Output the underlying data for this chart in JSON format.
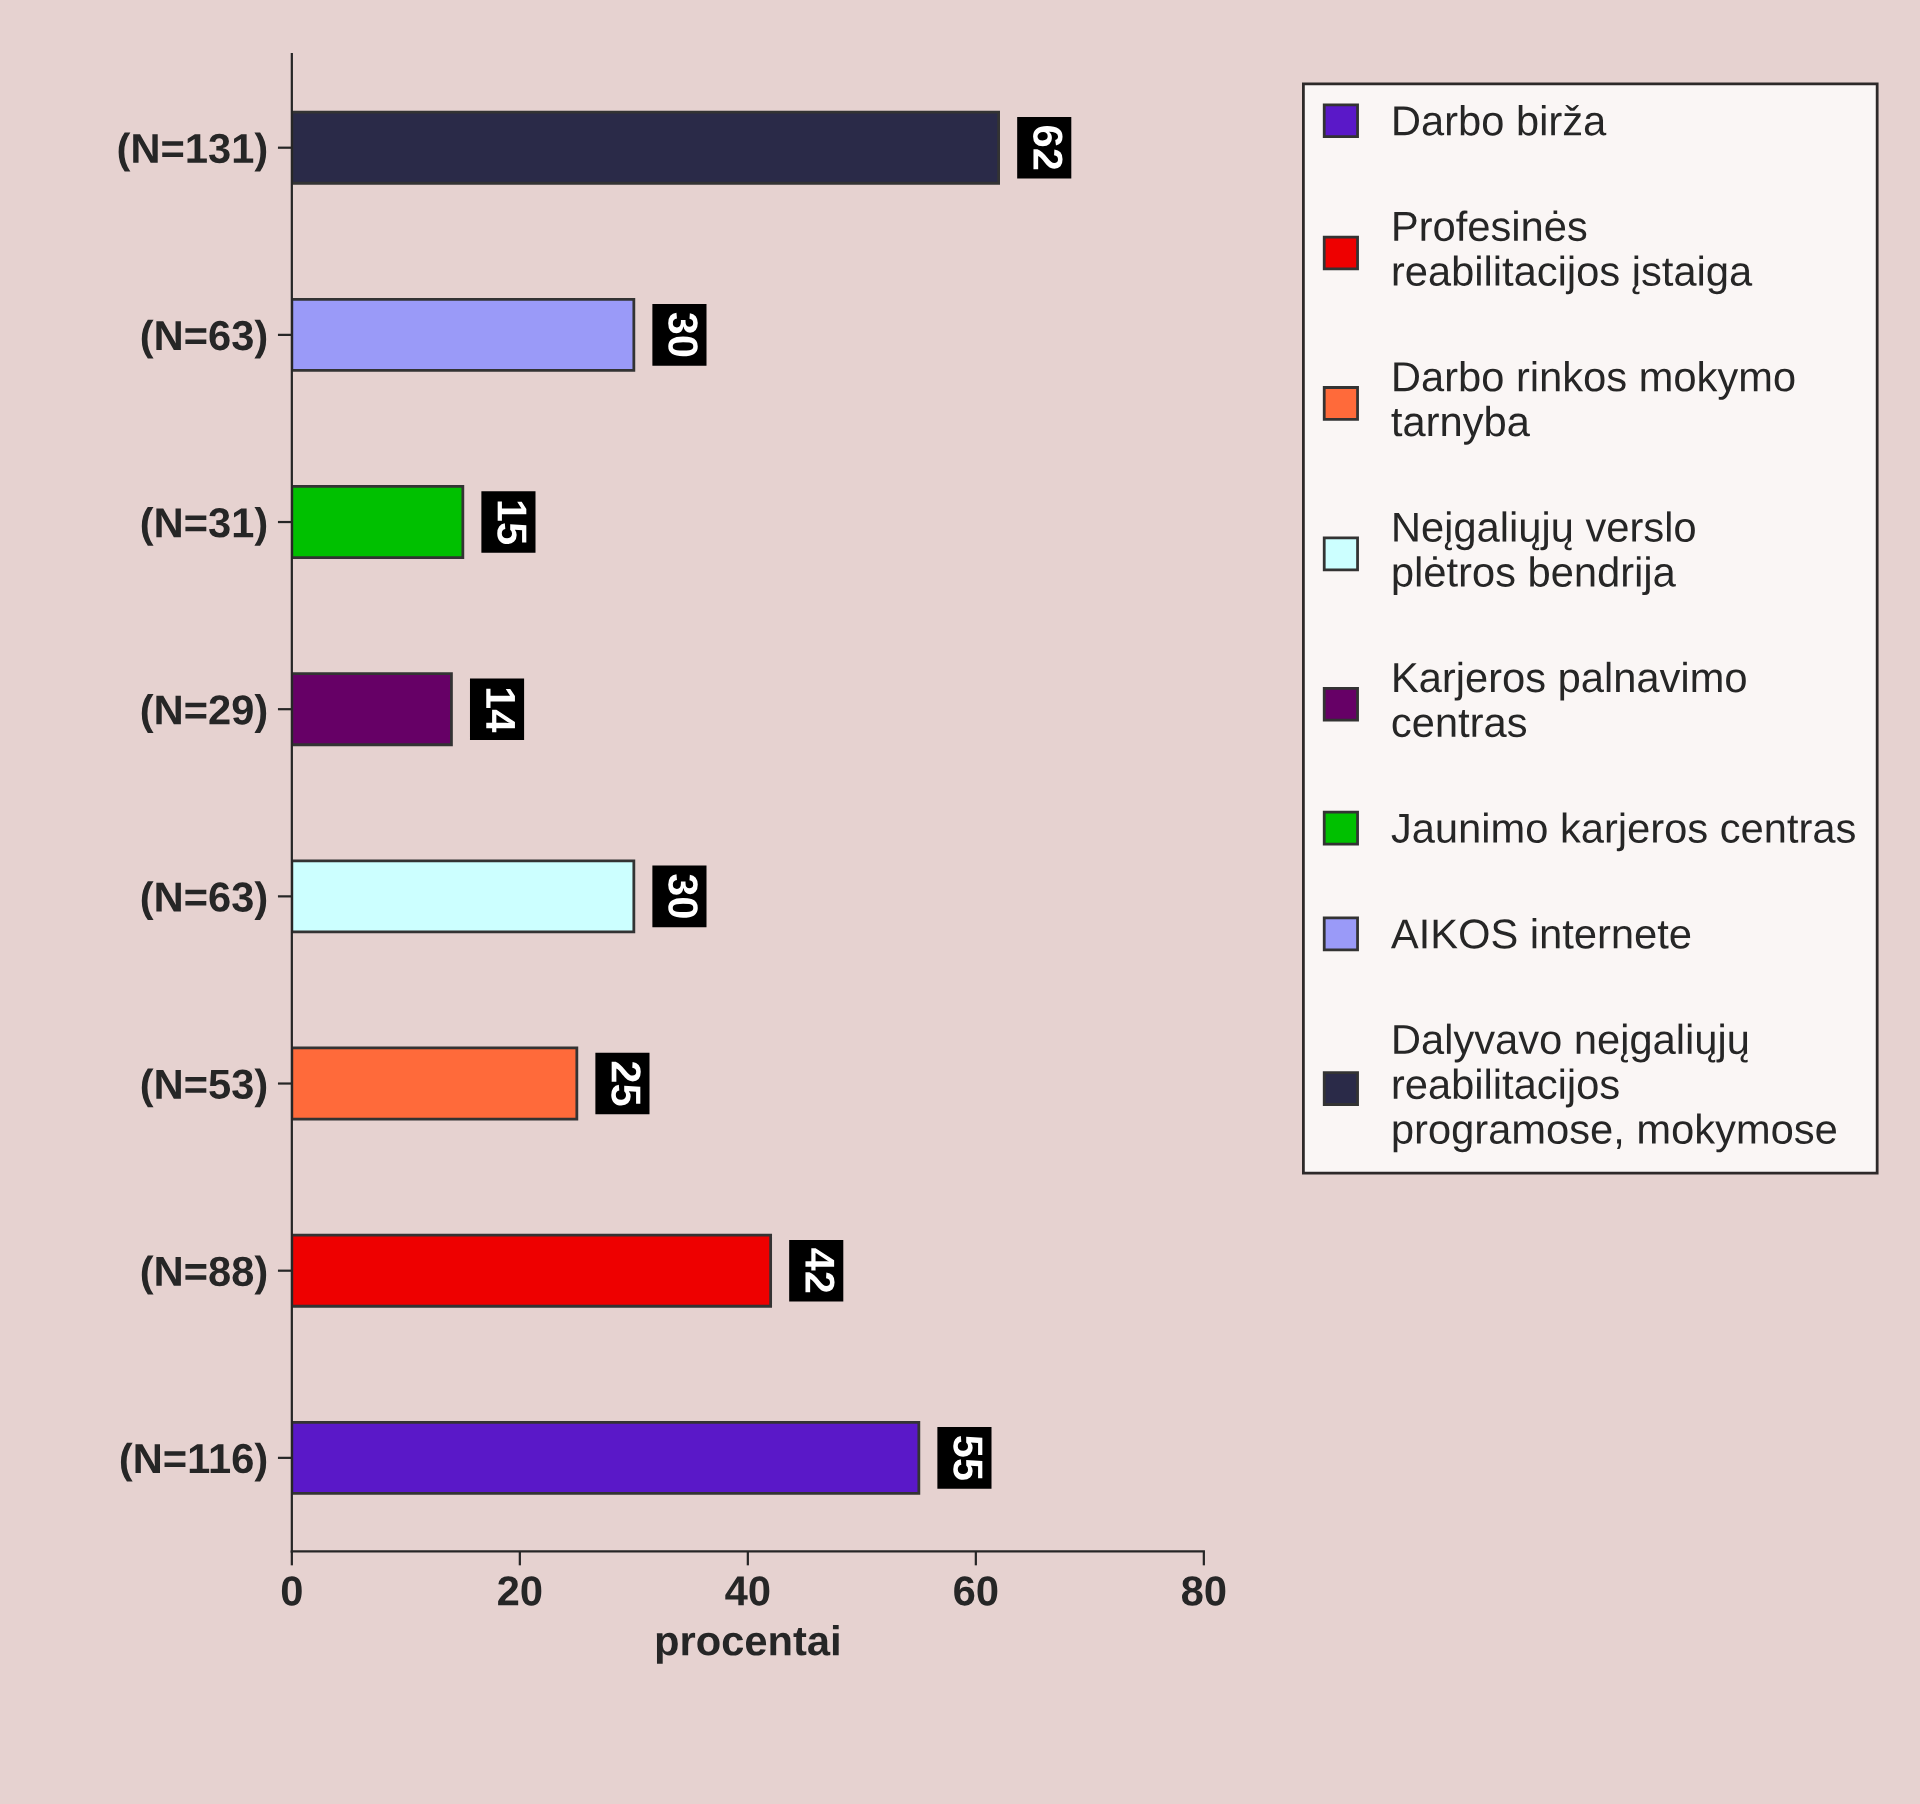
{
  "chart_data": {
    "type": "bar",
    "orientation": "horizontal",
    "xlabel": "procentai",
    "categories": [
      "(N=131)",
      "(N=63)",
      "(N=31)",
      "(N=29)",
      "(N=63)",
      "(N=53)",
      "(N=88)",
      "(N=116)"
    ],
    "series": [
      {
        "name": "Darbo birža",
        "color": "#5a18c8",
        "values": [
          null,
          null,
          null,
          null,
          null,
          null,
          null,
          55
        ]
      },
      {
        "name": "Profesinės reabilitacijos įstaiga",
        "color": "#ee0000",
        "values": [
          null,
          null,
          null,
          null,
          null,
          null,
          42,
          null
        ]
      },
      {
        "name": "Darbo rinkos mokymo tarnyba",
        "color": "#ff6a3a",
        "values": [
          null,
          null,
          null,
          null,
          null,
          25,
          null,
          null
        ]
      },
      {
        "name": "Neįgaliųjų verslo plėtros bendrija",
        "color": "#ccffff",
        "values": [
          null,
          null,
          null,
          null,
          30,
          null,
          null,
          null
        ]
      },
      {
        "name": "Karjeros palnavimo centras",
        "color": "#660066",
        "values": [
          null,
          null,
          null,
          14,
          null,
          null,
          null,
          null
        ]
      },
      {
        "name": "Jaunimo karjeros centras",
        "color": "#00c000",
        "values": [
          null,
          null,
          15,
          null,
          null,
          null,
          null,
          null
        ]
      },
      {
        "name": "AIKOS internete",
        "color": "#9a9af8",
        "values": [
          null,
          30,
          null,
          null,
          null,
          null,
          null,
          null
        ]
      },
      {
        "name": "Dalyvavo neįgaliųjų reabilitacijos programose, mokymose",
        "color": "#2a2a48",
        "values": [
          62,
          null,
          null,
          null,
          null,
          null,
          null,
          null
        ]
      }
    ],
    "xlim": [
      0,
      80
    ],
    "xticks": [
      0,
      20,
      40,
      60,
      80
    ],
    "data_labels": true,
    "grid": false,
    "legend": "right"
  }
}
